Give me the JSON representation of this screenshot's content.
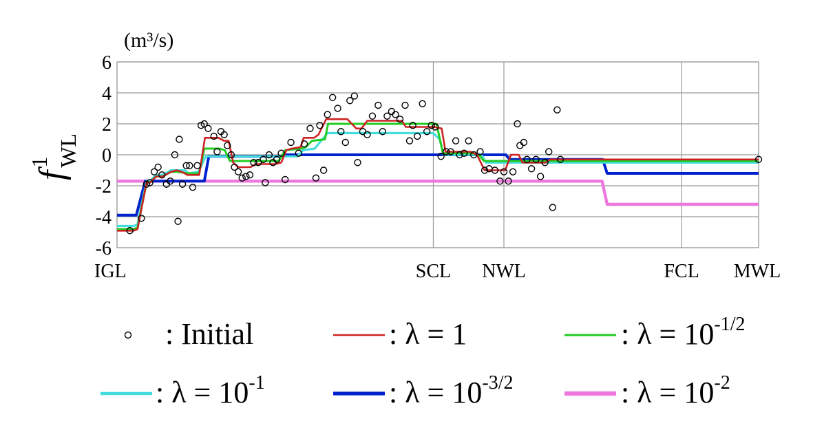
{
  "chart_data": {
    "type": "line",
    "ylabel": "f",
    "ylabel_sup": "1",
    "ylabel_sub": "WL",
    "unit": "(m³/s)",
    "ylim": [
      -6,
      6
    ],
    "yticks": [
      6,
      4,
      2,
      0,
      -2,
      -4,
      -6
    ],
    "xlim": [
      0,
      100
    ],
    "x_marks": [
      {
        "label": "IGL",
        "x": 0
      },
      {
        "label": "SCL",
        "x": 49.3
      },
      {
        "label": "NWL",
        "x": 60.3
      },
      {
        "label": "FCL",
        "x": 88.0
      },
      {
        "label": "MWL",
        "x": 100
      }
    ],
    "grid": true,
    "legend": [
      {
        "label": ": Initial",
        "color": "#000000",
        "marker": "circle"
      },
      {
        "label": ": λ = 1",
        "color": "#cc2222",
        "marker": "line"
      },
      {
        "label": ": λ = 10",
        "exp": "-1/2",
        "color": "#22cc22",
        "marker": "line"
      },
      {
        "label": ": λ = 10",
        "exp": "-1",
        "color": "#44dddd",
        "marker": "line"
      },
      {
        "label": ": λ = 10",
        "exp": "-3/2",
        "color": "#0022cc",
        "marker": "line"
      },
      {
        "label": ": λ = 10",
        "exp": "-2",
        "color": "#ee77dd",
        "marker": "line"
      }
    ],
    "initial_points": [
      [
        2.0,
        -4.9
      ],
      [
        3.8,
        -4.1
      ],
      [
        4.6,
        -1.9
      ],
      [
        5.1,
        -1.8
      ],
      [
        5.8,
        -1.1
      ],
      [
        6.4,
        -0.8
      ],
      [
        7.0,
        -1.3
      ],
      [
        7.7,
        -1.9
      ],
      [
        8.3,
        -1.7
      ],
      [
        9.0,
        0.0
      ],
      [
        9.5,
        -4.3
      ],
      [
        9.7,
        1.0
      ],
      [
        10.2,
        -1.9
      ],
      [
        10.8,
        -0.7
      ],
      [
        11.3,
        -0.7
      ],
      [
        11.8,
        -2.1
      ],
      [
        12.5,
        -0.7
      ],
      [
        13.1,
        1.9
      ],
      [
        13.6,
        2.0
      ],
      [
        14.2,
        1.7
      ],
      [
        15.1,
        1.2
      ],
      [
        15.6,
        0.2
      ],
      [
        16.2,
        1.5
      ],
      [
        16.7,
        1.3
      ],
      [
        17.2,
        0.6
      ],
      [
        17.8,
        0.0
      ],
      [
        18.3,
        -0.8
      ],
      [
        18.9,
        -1.1
      ],
      [
        19.5,
        -1.5
      ],
      [
        20.1,
        -1.4
      ],
      [
        20.7,
        -1.3
      ],
      [
        21.3,
        -0.5
      ],
      [
        22.0,
        -0.5
      ],
      [
        22.8,
        -0.3
      ],
      [
        23.1,
        -1.8
      ],
      [
        23.7,
        0.0
      ],
      [
        24.3,
        -0.5
      ],
      [
        24.9,
        -0.3
      ],
      [
        25.6,
        0.1
      ],
      [
        26.2,
        -1.6
      ],
      [
        27.1,
        0.8
      ],
      [
        28.3,
        0.1
      ],
      [
        29.2,
        0.7
      ],
      [
        30.1,
        1.7
      ],
      [
        31.0,
        -1.5
      ],
      [
        31.6,
        1.9
      ],
      [
        32.2,
        -1.0
      ],
      [
        32.8,
        2.6
      ],
      [
        33.6,
        3.7
      ],
      [
        34.4,
        3.0
      ],
      [
        34.9,
        1.5
      ],
      [
        35.6,
        0.8
      ],
      [
        36.3,
        3.5
      ],
      [
        37.0,
        3.8
      ],
      [
        37.5,
        -0.5
      ],
      [
        38.3,
        1.5
      ],
      [
        39.0,
        1.3
      ],
      [
        39.8,
        2.5
      ],
      [
        40.7,
        3.2
      ],
      [
        41.4,
        1.5
      ],
      [
        42.1,
        2.5
      ],
      [
        42.8,
        2.8
      ],
      [
        43.4,
        2.6
      ],
      [
        44.1,
        2.3
      ],
      [
        44.9,
        3.2
      ],
      [
        45.6,
        0.9
      ],
      [
        46.1,
        1.9
      ],
      [
        46.8,
        1.2
      ],
      [
        47.6,
        3.3
      ],
      [
        48.3,
        1.5
      ],
      [
        49.0,
        1.9
      ],
      [
        49.6,
        1.8
      ],
      [
        50.5,
        -0.1
      ],
      [
        51.3,
        0.2
      ],
      [
        52.0,
        0.2
      ],
      [
        52.8,
        0.9
      ],
      [
        53.4,
        0.0
      ],
      [
        54.1,
        0.1
      ],
      [
        54.8,
        0.9
      ],
      [
        55.6,
        0.0
      ],
      [
        56.6,
        0.2
      ],
      [
        57.3,
        -1.0
      ],
      [
        58.0,
        -0.9
      ],
      [
        58.9,
        -1.0
      ],
      [
        59.7,
        -1.7
      ],
      [
        60.3,
        -1.1
      ],
      [
        61.0,
        -1.7
      ],
      [
        61.7,
        -1.1
      ],
      [
        62.4,
        2.0
      ],
      [
        62.8,
        0.6
      ],
      [
        63.4,
        0.8
      ],
      [
        63.9,
        -0.3
      ],
      [
        64.6,
        -0.9
      ],
      [
        65.3,
        -0.3
      ],
      [
        66.0,
        -1.4
      ],
      [
        66.7,
        -0.5
      ],
      [
        67.3,
        0.2
      ],
      [
        67.9,
        -3.4
      ],
      [
        68.6,
        2.9
      ],
      [
        69.1,
        -0.3
      ],
      [
        100.0,
        -0.3
      ]
    ],
    "series": [
      {
        "name": "λ = 1",
        "color": "#cc2222",
        "width": 2.6,
        "points": [
          [
            0,
            -4.9
          ],
          [
            2.6,
            -4.9
          ],
          [
            3.2,
            -4.8
          ],
          [
            4.6,
            -1.8
          ],
          [
            5.1,
            -1.8
          ],
          [
            6.1,
            -1.4
          ],
          [
            7.1,
            -1.4
          ],
          [
            8.4,
            -1.1
          ],
          [
            9.3,
            -1.0
          ],
          [
            10.1,
            -1.1
          ],
          [
            11.0,
            -1.3
          ],
          [
            12.8,
            -1.3
          ],
          [
            13.7,
            1.1
          ],
          [
            15.8,
            1.1
          ],
          [
            16.7,
            0.9
          ],
          [
            17.4,
            0.9
          ],
          [
            18.1,
            -0.5
          ],
          [
            18.9,
            -0.8
          ],
          [
            20.8,
            -0.8
          ],
          [
            21.6,
            -0.6
          ],
          [
            24.7,
            -0.6
          ],
          [
            25.6,
            -0.5
          ],
          [
            26.4,
            0.3
          ],
          [
            27.2,
            0.4
          ],
          [
            28.6,
            0.5
          ],
          [
            29.1,
            1.1
          ],
          [
            30.7,
            1.1
          ],
          [
            31.4,
            1.3
          ],
          [
            32.6,
            2.3
          ],
          [
            35.9,
            2.3
          ],
          [
            36.6,
            2.0
          ],
          [
            37.3,
            1.7
          ],
          [
            38.1,
            1.7
          ],
          [
            39.0,
            2.2
          ],
          [
            44.4,
            2.2
          ],
          [
            45.0,
            1.8
          ],
          [
            49.4,
            1.8
          ],
          [
            50.6,
            1.7
          ],
          [
            51.2,
            0.2
          ],
          [
            55.1,
            0.2
          ],
          [
            56.1,
            0.0
          ],
          [
            57.3,
            -1.0
          ],
          [
            60.5,
            -1.0
          ],
          [
            61.4,
            0.0
          ],
          [
            62.6,
            0.0
          ],
          [
            63.2,
            -0.5
          ],
          [
            66.8,
            -0.5
          ],
          [
            67.5,
            -0.3
          ],
          [
            100,
            -0.3
          ]
        ]
      },
      {
        "name": "λ = 10^-1/2",
        "color": "#22cc22",
        "width": 3.0,
        "points": [
          [
            0,
            -4.8
          ],
          [
            2.6,
            -4.8
          ],
          [
            3.2,
            -4.7
          ],
          [
            4.6,
            -1.8
          ],
          [
            5.1,
            -1.8
          ],
          [
            6.1,
            -1.4
          ],
          [
            7.1,
            -1.4
          ],
          [
            8.4,
            -1.1
          ],
          [
            9.5,
            -1.1
          ],
          [
            11.0,
            -1.2
          ],
          [
            12.8,
            -1.2
          ],
          [
            13.6,
            0.4
          ],
          [
            16.0,
            0.4
          ],
          [
            16.8,
            0.3
          ],
          [
            17.6,
            -0.4
          ],
          [
            25.2,
            -0.4
          ],
          [
            26.2,
            0.3
          ],
          [
            28.8,
            0.4
          ],
          [
            29.4,
            0.5
          ],
          [
            30.4,
            0.9
          ],
          [
            32.4,
            1.0
          ],
          [
            32.9,
            2.0
          ],
          [
            49.8,
            2.0
          ],
          [
            50.8,
            0.1
          ],
          [
            55.3,
            0.1
          ],
          [
            56.4,
            0.0
          ],
          [
            57.2,
            -0.4
          ],
          [
            100,
            -0.4
          ]
        ]
      },
      {
        "name": "λ = 10^-1",
        "color": "#44dddd",
        "width": 3.2,
        "points": [
          [
            0,
            -4.6
          ],
          [
            2.6,
            -4.6
          ],
          [
            3.2,
            -4.5
          ],
          [
            4.6,
            -1.7
          ],
          [
            5.1,
            -1.7
          ],
          [
            6.1,
            -1.3
          ],
          [
            7.1,
            -1.3
          ],
          [
            8.4,
            -1.0
          ],
          [
            10.5,
            -1.0
          ],
          [
            11.2,
            -1.2
          ],
          [
            12.7,
            -1.1
          ],
          [
            13.8,
            -0.1
          ],
          [
            28.1,
            -0.1
          ],
          [
            29.0,
            0.3
          ],
          [
            30.8,
            0.4
          ],
          [
            32.8,
            1.4
          ],
          [
            49.3,
            1.4
          ],
          [
            50.3,
            1.0
          ],
          [
            50.9,
            0.0
          ],
          [
            56.8,
            0.0
          ],
          [
            57.5,
            -0.5
          ],
          [
            100,
            -0.5
          ]
        ]
      },
      {
        "name": "λ = 10^-3/2",
        "color": "#0022cc",
        "width": 4.0,
        "points": [
          [
            0,
            -3.9
          ],
          [
            3.0,
            -3.9
          ],
          [
            4.4,
            -1.7
          ],
          [
            13.6,
            -1.7
          ],
          [
            14.3,
            -0.1
          ],
          [
            25.7,
            -0.1
          ],
          [
            26.4,
            0.0
          ],
          [
            60.6,
            0.0
          ],
          [
            61.2,
            -0.3
          ],
          [
            75.7,
            -0.3
          ],
          [
            76.4,
            -1.2
          ],
          [
            100,
            -1.2
          ]
        ]
      },
      {
        "name": "λ = 10^-2",
        "color": "#ee77dd",
        "width": 4.4,
        "points": [
          [
            0,
            -1.7
          ],
          [
            75.6,
            -1.7
          ],
          [
            76.4,
            -3.2
          ],
          [
            100,
            -3.2
          ]
        ]
      }
    ]
  }
}
